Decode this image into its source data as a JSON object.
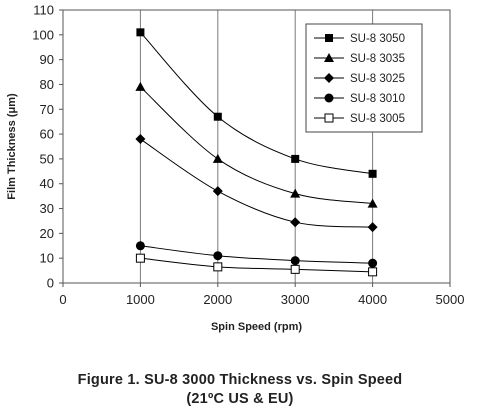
{
  "chart_data": {
    "type": "line",
    "xlabel": "Spin Speed (rpm)",
    "ylabel": "Film Thickness (μm)",
    "xlim": [
      0,
      5000
    ],
    "ylim": [
      0,
      110
    ],
    "xticks": [
      0,
      1000,
      2000,
      3000,
      4000,
      5000
    ],
    "yticks": [
      0,
      10,
      20,
      30,
      40,
      50,
      60,
      70,
      80,
      90,
      100,
      110
    ],
    "grid": "vertical",
    "legend_position": "top-right",
    "x": [
      1000,
      2000,
      3000,
      4000
    ],
    "series": [
      {
        "name": "SU-8 3050",
        "marker": "square",
        "values": [
          101,
          67,
          50,
          44
        ]
      },
      {
        "name": "SU-8 3035",
        "marker": "triangle",
        "values": [
          79,
          50,
          36,
          32
        ]
      },
      {
        "name": "SU-8 3025",
        "marker": "diamond",
        "values": [
          58,
          37,
          24.5,
          22.5
        ]
      },
      {
        "name": "SU-8 3010",
        "marker": "circle",
        "values": [
          15,
          11,
          9,
          8
        ]
      },
      {
        "name": "SU-8 3005",
        "marker": "open-square",
        "values": [
          10,
          6.5,
          5.5,
          4.5
        ]
      }
    ]
  },
  "caption": {
    "line1": "Figure 1. SU-8 3000 Thickness vs. Spin Speed",
    "line2": "(21ºC US & EU)"
  },
  "colors": {
    "line": "#000000",
    "grid": "#7a7a7a",
    "text": "#222222"
  }
}
